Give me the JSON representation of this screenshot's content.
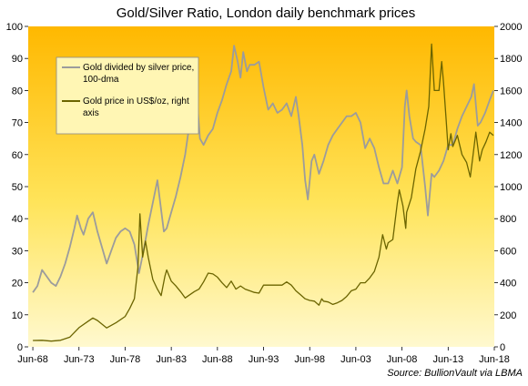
{
  "chart_data": {
    "type": "line",
    "title": "Gold/Silver Ratio, London daily benchmark prices",
    "source": "Source: BullionVault via LBMA",
    "x_ticks": [
      "Jun-68",
      "Jun-73",
      "Jun-78",
      "Jun-83",
      "Jun-88",
      "Jun-93",
      "Jun-98",
      "Jun-03",
      "Jun-08",
      "Jun-13",
      "Jun-18"
    ],
    "y_left_ticks": [
      "0",
      "10",
      "20",
      "30",
      "40",
      "50",
      "60",
      "70",
      "80",
      "90",
      "100"
    ],
    "y_right_ticks": [
      "0",
      "200",
      "400",
      "600",
      "800",
      "1000",
      "1200",
      "1400",
      "1600",
      "1800",
      "2000"
    ],
    "y_left_range": [
      0,
      100
    ],
    "y_right_range": [
      0,
      2000
    ],
    "x_range": [
      1968.0,
      2018.5
    ],
    "grid": false,
    "background": "yellow-to-orange gradient",
    "legend_position": "top-left",
    "series": [
      {
        "name": "Gold divided by silver price, 100-dma",
        "axis": "left",
        "color": "#9c9c9c",
        "points": [
          [
            1968.5,
            17
          ],
          [
            1969.0,
            19
          ],
          [
            1969.5,
            24
          ],
          [
            1970.0,
            22
          ],
          [
            1970.5,
            20
          ],
          [
            1971.0,
            19
          ],
          [
            1971.5,
            22
          ],
          [
            1972.0,
            26
          ],
          [
            1972.5,
            31
          ],
          [
            1973.0,
            37
          ],
          [
            1973.3,
            41
          ],
          [
            1973.7,
            37
          ],
          [
            1974.0,
            35
          ],
          [
            1974.5,
            40
          ],
          [
            1975.0,
            42
          ],
          [
            1975.5,
            36
          ],
          [
            1976.0,
            31
          ],
          [
            1976.5,
            26
          ],
          [
            1977.0,
            30
          ],
          [
            1977.5,
            34
          ],
          [
            1978.0,
            36
          ],
          [
            1978.5,
            37
          ],
          [
            1979.0,
            36
          ],
          [
            1979.5,
            32
          ],
          [
            1980.0,
            23
          ],
          [
            1980.5,
            30
          ],
          [
            1981.0,
            38
          ],
          [
            1981.5,
            45
          ],
          [
            1982.0,
            52
          ],
          [
            1982.3,
            45
          ],
          [
            1982.7,
            36
          ],
          [
            1983.0,
            37
          ],
          [
            1983.5,
            42
          ],
          [
            1984.0,
            47
          ],
          [
            1984.5,
            53
          ],
          [
            1985.0,
            60
          ],
          [
            1985.3,
            66
          ],
          [
            1985.6,
            70
          ],
          [
            1986.0,
            73
          ],
          [
            1986.3,
            77
          ],
          [
            1986.6,
            65
          ],
          [
            1987.0,
            63
          ],
          [
            1987.5,
            66
          ],
          [
            1988.0,
            68
          ],
          [
            1988.5,
            73
          ],
          [
            1989.0,
            77
          ],
          [
            1989.5,
            82
          ],
          [
            1990.0,
            86
          ],
          [
            1990.3,
            94
          ],
          [
            1990.7,
            89
          ],
          [
            1991.0,
            84
          ],
          [
            1991.3,
            92
          ],
          [
            1991.7,
            86
          ],
          [
            1992.0,
            88
          ],
          [
            1992.5,
            88
          ],
          [
            1993.0,
            89
          ],
          [
            1993.5,
            81
          ],
          [
            1994.0,
            74
          ],
          [
            1994.5,
            76
          ],
          [
            1995.0,
            73
          ],
          [
            1995.5,
            74
          ],
          [
            1996.0,
            76
          ],
          [
            1996.5,
            72
          ],
          [
            1997.0,
            78
          ],
          [
            1997.3,
            72
          ],
          [
            1997.7,
            63
          ],
          [
            1998.0,
            52
          ],
          [
            1998.3,
            46
          ],
          [
            1998.7,
            58
          ],
          [
            1999.0,
            60
          ],
          [
            1999.5,
            54
          ],
          [
            2000.0,
            58
          ],
          [
            2000.5,
            63
          ],
          [
            2001.0,
            66
          ],
          [
            2001.5,
            68
          ],
          [
            2002.0,
            70
          ],
          [
            2002.5,
            72
          ],
          [
            2003.0,
            72
          ],
          [
            2003.5,
            73
          ],
          [
            2004.0,
            70
          ],
          [
            2004.5,
            62
          ],
          [
            2005.0,
            65
          ],
          [
            2005.5,
            62
          ],
          [
            2006.0,
            56
          ],
          [
            2006.5,
            51
          ],
          [
            2007.0,
            51
          ],
          [
            2007.5,
            55
          ],
          [
            2008.0,
            51
          ],
          [
            2008.5,
            56
          ],
          [
            2008.8,
            75
          ],
          [
            2009.0,
            80
          ],
          [
            2009.3,
            72
          ],
          [
            2009.7,
            65
          ],
          [
            2010.0,
            64
          ],
          [
            2010.5,
            63
          ],
          [
            2011.0,
            50
          ],
          [
            2011.3,
            41
          ],
          [
            2011.7,
            54
          ],
          [
            2012.0,
            53
          ],
          [
            2012.5,
            55
          ],
          [
            2013.0,
            58
          ],
          [
            2013.5,
            63
          ],
          [
            2014.0,
            63
          ],
          [
            2014.5,
            68
          ],
          [
            2015.0,
            72
          ],
          [
            2015.5,
            75
          ],
          [
            2016.0,
            78
          ],
          [
            2016.3,
            82
          ],
          [
            2016.7,
            69
          ],
          [
            2017.0,
            70
          ],
          [
            2017.5,
            73
          ],
          [
            2018.0,
            77
          ],
          [
            2018.4,
            80
          ]
        ]
      },
      {
        "name": "Gold price in US$/oz, right axis",
        "axis": "right",
        "color": "#6b6400",
        "points": [
          [
            1968.5,
            40
          ],
          [
            1969.5,
            41
          ],
          [
            1970.5,
            36
          ],
          [
            1971.5,
            41
          ],
          [
            1972.5,
            60
          ],
          [
            1973.5,
            120
          ],
          [
            1974.5,
            160
          ],
          [
            1975.0,
            180
          ],
          [
            1975.5,
            165
          ],
          [
            1976.5,
            118
          ],
          [
            1977.5,
            150
          ],
          [
            1978.5,
            190
          ],
          [
            1979.0,
            240
          ],
          [
            1979.5,
            300
          ],
          [
            1979.9,
            500
          ],
          [
            1980.1,
            830
          ],
          [
            1980.4,
            560
          ],
          [
            1980.7,
            660
          ],
          [
            1981.0,
            560
          ],
          [
            1981.5,
            420
          ],
          [
            1982.0,
            360
          ],
          [
            1982.4,
            320
          ],
          [
            1982.8,
            440
          ],
          [
            1983.0,
            480
          ],
          [
            1983.5,
            410
          ],
          [
            1984.0,
            380
          ],
          [
            1984.5,
            345
          ],
          [
            1985.0,
            305
          ],
          [
            1985.5,
            325
          ],
          [
            1986.0,
            345
          ],
          [
            1986.5,
            360
          ],
          [
            1987.0,
            405
          ],
          [
            1987.5,
            460
          ],
          [
            1988.0,
            455
          ],
          [
            1988.5,
            435
          ],
          [
            1989.0,
            400
          ],
          [
            1989.5,
            370
          ],
          [
            1990.0,
            410
          ],
          [
            1990.5,
            360
          ],
          [
            1991.0,
            380
          ],
          [
            1991.5,
            360
          ],
          [
            1992.0,
            350
          ],
          [
            1992.5,
            340
          ],
          [
            1993.0,
            335
          ],
          [
            1993.5,
            385
          ],
          [
            1994.0,
            385
          ],
          [
            1994.5,
            385
          ],
          [
            1995.0,
            385
          ],
          [
            1995.5,
            385
          ],
          [
            1996.0,
            405
          ],
          [
            1996.5,
            385
          ],
          [
            1997.0,
            350
          ],
          [
            1997.5,
            325
          ],
          [
            1998.0,
            300
          ],
          [
            1998.5,
            290
          ],
          [
            1999.0,
            285
          ],
          [
            1999.5,
            260
          ],
          [
            1999.8,
            300
          ],
          [
            2000.0,
            285
          ],
          [
            2000.5,
            280
          ],
          [
            2001.0,
            265
          ],
          [
            2001.5,
            275
          ],
          [
            2002.0,
            290
          ],
          [
            2002.5,
            315
          ],
          [
            2003.0,
            350
          ],
          [
            2003.5,
            360
          ],
          [
            2004.0,
            400
          ],
          [
            2004.5,
            400
          ],
          [
            2005.0,
            430
          ],
          [
            2005.5,
            470
          ],
          [
            2006.0,
            560
          ],
          [
            2006.4,
            700
          ],
          [
            2006.8,
            610
          ],
          [
            2007.0,
            650
          ],
          [
            2007.5,
            670
          ],
          [
            2008.0,
            900
          ],
          [
            2008.2,
            980
          ],
          [
            2008.6,
            880
          ],
          [
            2008.9,
            740
          ],
          [
            2009.0,
            840
          ],
          [
            2009.5,
            930
          ],
          [
            2010.0,
            1110
          ],
          [
            2010.5,
            1220
          ],
          [
            2011.0,
            1360
          ],
          [
            2011.4,
            1500
          ],
          [
            2011.7,
            1890
          ],
          [
            2012.0,
            1600
          ],
          [
            2012.5,
            1600
          ],
          [
            2012.8,
            1780
          ],
          [
            2013.0,
            1650
          ],
          [
            2013.3,
            1400
          ],
          [
            2013.5,
            1230
          ],
          [
            2013.8,
            1330
          ],
          [
            2014.0,
            1250
          ],
          [
            2014.5,
            1320
          ],
          [
            2015.0,
            1200
          ],
          [
            2015.5,
            1150
          ],
          [
            2015.9,
            1060
          ],
          [
            2016.2,
            1200
          ],
          [
            2016.5,
            1340
          ],
          [
            2016.9,
            1160
          ],
          [
            2017.2,
            1230
          ],
          [
            2017.6,
            1280
          ],
          [
            2018.0,
            1340
          ],
          [
            2018.4,
            1320
          ]
        ]
      }
    ]
  }
}
